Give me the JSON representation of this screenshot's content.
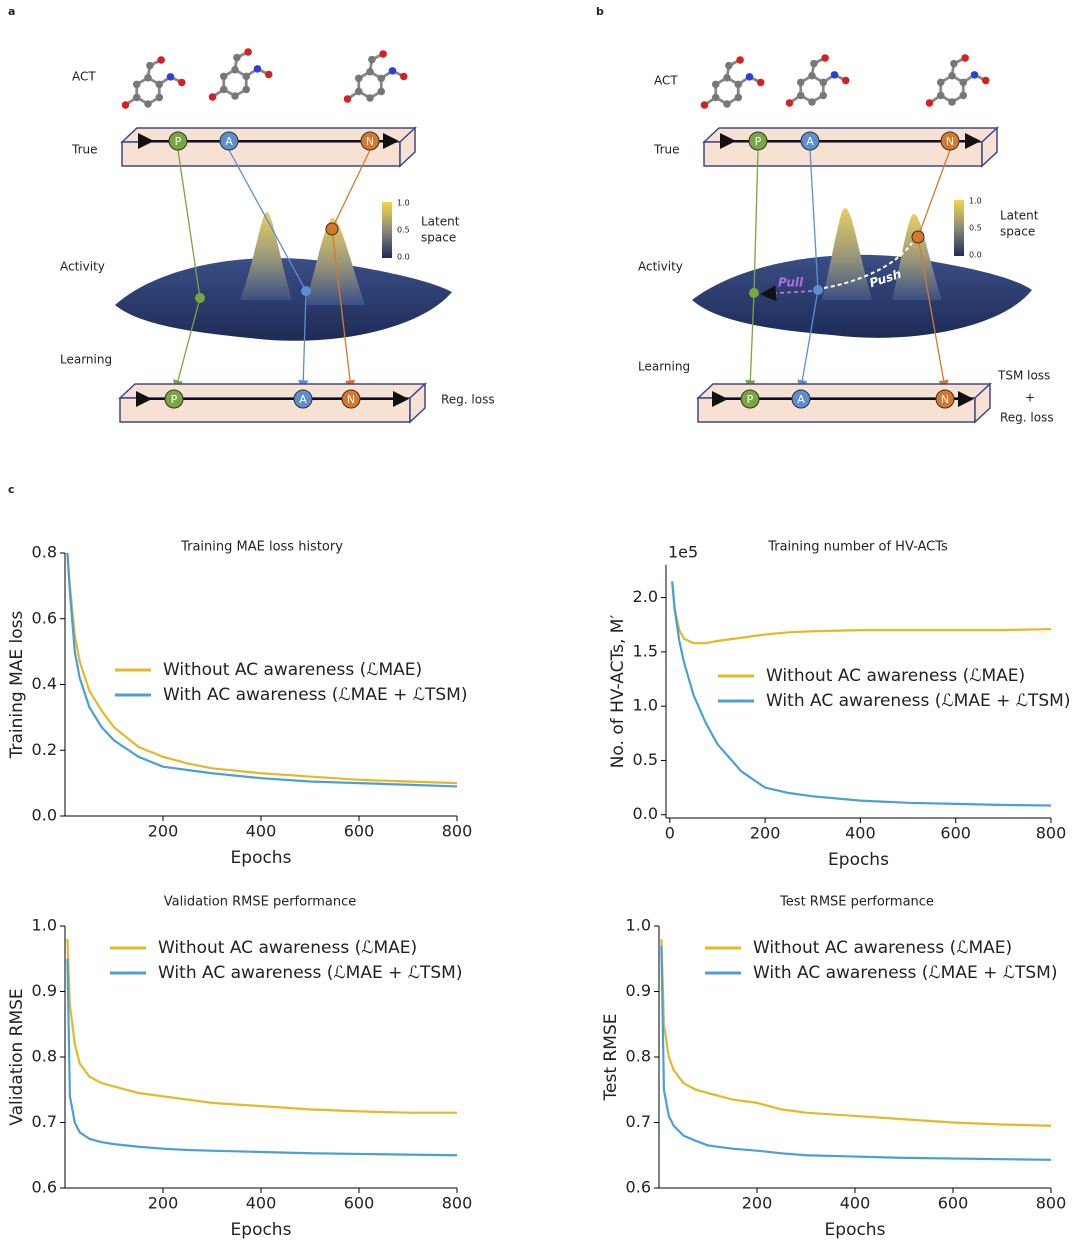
{
  "panel_labels": [
    "a",
    "b",
    "c"
  ],
  "panel_a": {
    "row_labels": [
      "ACT",
      "True",
      "Activity",
      "Learning"
    ],
    "nodes": [
      "P",
      "A",
      "N"
    ],
    "colorbar": {
      "title": [
        "Latent",
        "space"
      ],
      "ticks": [
        "1.0",
        "0.5",
        "0.0"
      ]
    },
    "loss": [
      "Reg. loss"
    ]
  },
  "panel_b": {
    "row_labels": [
      "ACT",
      "True",
      "Activity",
      "Learning"
    ],
    "nodes": [
      "P",
      "A",
      "N"
    ],
    "colorbar": {
      "title": [
        "Latent",
        "space"
      ],
      "ticks": [
        "1.0",
        "0.5",
        "0.0"
      ]
    },
    "pull": "Pull",
    "push": "Push",
    "loss": [
      "TSM loss",
      "+",
      "Reg. loss"
    ]
  },
  "chart_data": [
    {
      "type": "line",
      "title": "Training MAE loss history",
      "xlabel": "Epochs",
      "ylabel": "Training MAE loss",
      "x": [
        5,
        10,
        20,
        30,
        50,
        75,
        100,
        150,
        200,
        250,
        300,
        400,
        500,
        600,
        700,
        800
      ],
      "series": [
        {
          "name": "Without AC awareness (ℒMAE)",
          "color": "#e6b728",
          "values": [
            0.8,
            0.7,
            0.55,
            0.47,
            0.38,
            0.32,
            0.27,
            0.21,
            0.18,
            0.16,
            0.145,
            0.13,
            0.12,
            0.11,
            0.105,
            0.1
          ]
        },
        {
          "name": "With AC awareness (ℒMAE + ℒTSM)",
          "color": "#4a9fd8",
          "values": [
            0.8,
            0.68,
            0.5,
            0.42,
            0.33,
            0.27,
            0.23,
            0.18,
            0.15,
            0.14,
            0.13,
            0.115,
            0.105,
            0.1,
            0.095,
            0.09
          ]
        }
      ],
      "xlim": [
        0,
        800
      ],
      "ylim": [
        0,
        0.8
      ],
      "xticks": [
        200,
        400,
        600,
        800
      ],
      "yticks": [
        {
          "value": 0,
          "label": "0.0"
        },
        0.2,
        0.4,
        0.6,
        0.8
      ],
      "grid": false
    },
    {
      "type": "line",
      "title": "Training number of HV-ACTs",
      "xlabel": "Epochs",
      "ylabel": "No. of HV-ACTs, M′",
      "y_offset_label": "1e5",
      "x": [
        5,
        10,
        20,
        30,
        50,
        75,
        100,
        150,
        200,
        250,
        300,
        400,
        500,
        600,
        700,
        800
      ],
      "series": [
        {
          "name": "Without AC awareness (ℒMAE)",
          "color": "#e6b728",
          "values": [
            2.15,
            1.9,
            1.7,
            1.62,
            1.58,
            1.58,
            1.6,
            1.63,
            1.66,
            1.68,
            1.69,
            1.7,
            1.7,
            1.7,
            1.7,
            1.71
          ]
        },
        {
          "name": "With AC awareness (ℒMAE + ℒTSM)",
          "color": "#4a9fd8",
          "values": [
            2.15,
            1.9,
            1.6,
            1.4,
            1.1,
            0.85,
            0.65,
            0.4,
            0.25,
            0.2,
            0.17,
            0.13,
            0.11,
            0.1,
            0.09,
            0.085
          ]
        }
      ],
      "xlim": [
        -8,
        800
      ],
      "ylim": [
        -0.03,
        2.3
      ],
      "xticks": [
        0,
        200,
        400,
        600,
        800
      ],
      "yticks": [
        {
          "value": 0,
          "label": "0.0"
        },
        0.5,
        {
          "value": 1,
          "label": "1.0"
        },
        1.5,
        {
          "value": 2,
          "label": "2.0"
        }
      ],
      "grid": false
    },
    {
      "type": "line",
      "title": "Validation RMSE performance",
      "xlabel": "Epochs",
      "ylabel": "Validation RMSE",
      "x": [
        5,
        10,
        20,
        30,
        50,
        75,
        100,
        150,
        200,
        250,
        300,
        400,
        500,
        600,
        700,
        800
      ],
      "series": [
        {
          "name": "Without AC awareness (ℒMAE)",
          "color": "#e6b728",
          "values": [
            0.98,
            0.88,
            0.82,
            0.79,
            0.77,
            0.76,
            0.755,
            0.745,
            0.74,
            0.735,
            0.73,
            0.725,
            0.72,
            0.717,
            0.715,
            0.715
          ]
        },
        {
          "name": "With AC awareness (ℒMAE + ℒTSM)",
          "color": "#4a9fd8",
          "values": [
            0.95,
            0.74,
            0.7,
            0.685,
            0.675,
            0.67,
            0.667,
            0.663,
            0.66,
            0.658,
            0.657,
            0.655,
            0.653,
            0.652,
            0.651,
            0.65
          ]
        }
      ],
      "xlim": [
        0,
        800
      ],
      "ylim": [
        0.6,
        1.0
      ],
      "xticks": [
        200,
        400,
        600,
        800
      ],
      "yticks": [
        0.6,
        0.7,
        0.8,
        0.9,
        {
          "value": 1,
          "label": "1.0"
        }
      ],
      "grid": false
    },
    {
      "type": "line",
      "title": "Test RMSE performance",
      "xlabel": "Epochs",
      "ylabel": "Test RMSE",
      "x": [
        5,
        10,
        20,
        30,
        50,
        75,
        100,
        150,
        200,
        250,
        300,
        400,
        500,
        600,
        700,
        800
      ],
      "series": [
        {
          "name": "Without AC awareness (ℒMAE)",
          "color": "#e6b728",
          "values": [
            0.98,
            0.85,
            0.8,
            0.78,
            0.76,
            0.75,
            0.745,
            0.735,
            0.73,
            0.72,
            0.715,
            0.71,
            0.705,
            0.7,
            0.697,
            0.695
          ]
        },
        {
          "name": "With AC awareness (ℒMAE + ℒTSM)",
          "color": "#4a9fd8",
          "values": [
            0.97,
            0.75,
            0.71,
            0.695,
            0.68,
            0.672,
            0.665,
            0.66,
            0.657,
            0.653,
            0.65,
            0.648,
            0.646,
            0.645,
            0.644,
            0.643
          ]
        }
      ],
      "xlim": [
        0,
        800
      ],
      "ylim": [
        0.6,
        1.0
      ],
      "xticks": [
        200,
        400,
        600,
        800
      ],
      "yticks": [
        0.6,
        0.7,
        0.8,
        0.9,
        {
          "value": 1,
          "label": "1.0"
        }
      ],
      "grid": false
    }
  ]
}
